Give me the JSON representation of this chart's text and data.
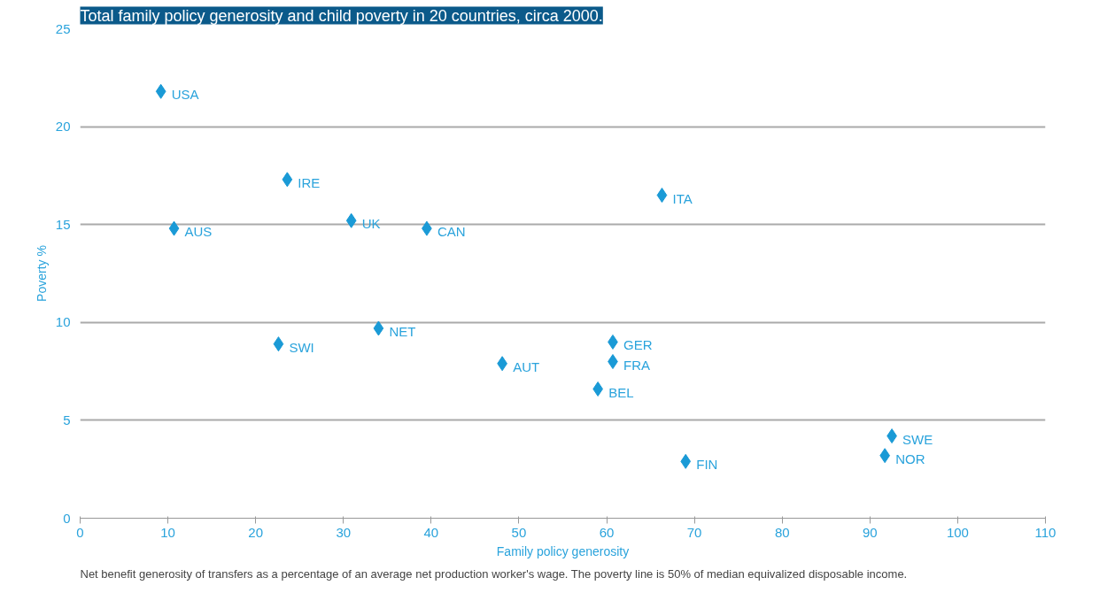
{
  "chart_data": {
    "type": "scatter",
    "title": "Total family policy generosity and child poverty in 20 countries, circa 2000.",
    "xlabel": "Family policy generosity",
    "ylabel": "Poverty %",
    "x": [
      9.2,
      23.6,
      10.7,
      30.9,
      39.5,
      66.3,
      22.6,
      34.0,
      48.1,
      60.7,
      60.7,
      59.0,
      69.0,
      92.5,
      91.7
    ],
    "series": [
      {
        "color": "#1a9ad6",
        "values": [
          21.8,
          17.3,
          14.8,
          15.2,
          14.8,
          16.5,
          8.9,
          9.7,
          7.9,
          9.0,
          8.0,
          6.6,
          2.9,
          4.2,
          3.2
        ]
      }
    ],
    "annotations": [
      {
        "text": "USA",
        "x": 9.2,
        "y": 21.8
      },
      {
        "text": "IRE",
        "x": 23.6,
        "y": 17.3
      },
      {
        "text": "AUS",
        "x": 10.7,
        "y": 14.8
      },
      {
        "text": "UK",
        "x": 30.9,
        "y": 15.2
      },
      {
        "text": "CAN",
        "x": 39.5,
        "y": 14.8
      },
      {
        "text": "ITA",
        "x": 66.3,
        "y": 16.5
      },
      {
        "text": "SWI",
        "x": 22.6,
        "y": 8.9
      },
      {
        "text": "NET",
        "x": 34.0,
        "y": 9.7
      },
      {
        "text": "AUT",
        "x": 48.1,
        "y": 7.9
      },
      {
        "text": "GER",
        "x": 60.7,
        "y": 9.0
      },
      {
        "text": "FRA",
        "x": 60.7,
        "y": 8.0
      },
      {
        "text": "BEL",
        "x": 59.0,
        "y": 6.6
      },
      {
        "text": "FIN",
        "x": 69.0,
        "y": 2.9
      },
      {
        "text": "SWE",
        "x": 92.5,
        "y": 4.2
      },
      {
        "text": "NOR",
        "x": 91.7,
        "y": 3.2
      },
      "Net benefit generosity of transfers as a percentage of an average net production worker's wage. The poverty line is 50% of median equivalized disposable income."
    ],
    "xlim": [
      0,
      110
    ],
    "xticks": [
      0,
      10,
      20,
      30,
      40,
      50,
      60,
      70,
      80,
      90,
      100,
      110
    ],
    "ylim": [
      0,
      25
    ],
    "yticks": [
      0,
      5,
      10,
      15,
      20,
      25
    ],
    "grid": "y",
    "marker": "diamond"
  }
}
